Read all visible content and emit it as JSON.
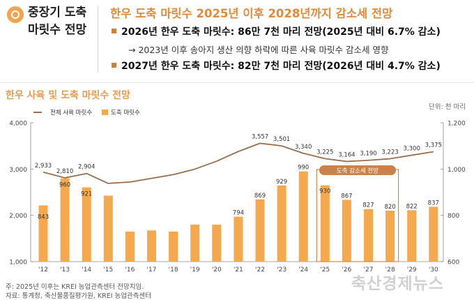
{
  "side_title": [
    "중장기 도축",
    "마릿수 전망"
  ],
  "headline": "한우 도축 마릿수 2025년 이후 2028년까지 감소세 전망",
  "bullets": [
    "2026년 한우 도축 마릿수: 86만 7천 마리 전망(2025년 대비 6.7% 감소)",
    "2027년 한우 도축 마릿수: 82만 7천 마리 전망(2026년 대비 4.7% 감소)"
  ],
  "subnote": "→ 2023년 이후 송아지 생산 의향 하락에 따른 사육 마릿수 감소세 영향",
  "chart_title": "한우 사육 및 도축 마릿수 전망",
  "unit": "단위: 천 마리",
  "footnotes": [
    "주: 2025년 이후는 KREI 농업관측센터 전망치임.",
    "자료: 통계청, 축산물품질평가원, KREI 농업관측센터"
  ],
  "watermark": "축산경제뉴스",
  "colors": {
    "bar": "#f5a94e",
    "line": "#9b6e4b",
    "highlight": "#d9884a",
    "headline": "#e08a3c"
  },
  "chart_data": {
    "type": "bar",
    "categories": [
      "'12",
      "'13",
      "'14",
      "'15",
      "'16",
      "'17",
      "'18",
      "'19",
      "'20",
      "'21",
      "'22",
      "'23",
      "'24",
      "'25",
      "'26",
      "'27",
      "'28",
      "'29",
      "'30"
    ],
    "series": [
      {
        "name": "전체 사육 마릿수",
        "type": "line",
        "axis": "left",
        "values": [
          2933,
          2810,
          2904,
          2690,
          2720,
          2800,
          2880,
          3000,
          3170,
          3380,
          3557,
          3501,
          3340,
          3225,
          3164,
          3190,
          3223,
          3300,
          3375
        ]
      },
      {
        "name": "도축 마릿수",
        "type": "bar",
        "axis": "right",
        "values": [
          843,
          960,
          921,
          885,
          730,
          735,
          730,
          760,
          760,
          794,
          869,
          929,
          990,
          930,
          867,
          827,
          820,
          822,
          837
        ]
      }
    ],
    "line_labels": {
      "'12": "2,933",
      "'13": "2,810",
      "'14": "2,904",
      "'22": "3,557",
      "'23": "3,501",
      "'24": "3,340",
      "'25": "3,225",
      "'26": "3,164",
      "'27": "3,190",
      "'28": "3,223",
      "'29": "3,300",
      "'30": "3,375"
    },
    "bar_labels": {
      "'12": "843",
      "'13": "960",
      "'14": "921",
      "'21": "794",
      "'22": "869",
      "'23": "929",
      "'24": "990",
      "'25": "930",
      "'26": "867",
      "'27": "827",
      "'28": "820",
      "'29": "822",
      "'30": "837"
    },
    "ylim_left": [
      1000,
      4000
    ],
    "yticks_left": [
      "1,000",
      "2,000",
      "3,000",
      "4,000"
    ],
    "ylim_right": [
      600,
      1200
    ],
    "yticks_right": [
      "600",
      "800",
      "1,000",
      "1,200"
    ],
    "highlight_label": "도축 감소세 전망",
    "legend_position": "top-left",
    "grid": false
  }
}
